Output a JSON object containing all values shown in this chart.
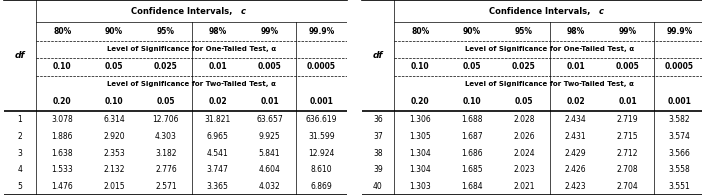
{
  "title": "Confidence Intervals, c",
  "ci_headers": [
    "80%",
    "90%",
    "95%",
    "98%",
    "99%",
    "99.9%"
  ],
  "one_tail_label": "Level of Significance for One-Tailed Test, α",
  "one_tail_vals": [
    "0.10",
    "0.05",
    "0.025",
    "0.01",
    "0.005",
    "0.0005"
  ],
  "two_tail_label": "Level of Significance for Two-Tailed Test, α",
  "two_tail_vals": [
    "0.20",
    "0.10",
    "0.05",
    "0.02",
    "0.01",
    "0.001"
  ],
  "df_label": "df",
  "left_table": {
    "df": [
      1,
      2,
      3,
      4,
      5
    ],
    "data": [
      [
        "3.078",
        "6.314",
        "12.706",
        "31.821",
        "63.657",
        "636.619"
      ],
      [
        "1.886",
        "2.920",
        "4.303",
        "6.965",
        "9.925",
        "31.599"
      ],
      [
        "1.638",
        "2.353",
        "3.182",
        "4.541",
        "5.841",
        "12.924"
      ],
      [
        "1.533",
        "2.132",
        "2.776",
        "3.747",
        "4.604",
        "8.610"
      ],
      [
        "1.476",
        "2.015",
        "2.571",
        "3.365",
        "4.032",
        "6.869"
      ]
    ]
  },
  "right_table": {
    "df": [
      36,
      37,
      38,
      39,
      40
    ],
    "data": [
      [
        "1.306",
        "1.688",
        "2.028",
        "2.434",
        "2.719",
        "3.582"
      ],
      [
        "1.305",
        "1.687",
        "2.026",
        "2.431",
        "2.715",
        "3.574"
      ],
      [
        "1.304",
        "1.686",
        "2.024",
        "2.429",
        "2.712",
        "3.566"
      ],
      [
        "1.304",
        "1.685",
        "2.023",
        "2.426",
        "2.708",
        "3.558"
      ],
      [
        "1.303",
        "1.684",
        "2.021",
        "2.423",
        "2.704",
        "3.551"
      ]
    ]
  },
  "bg_color": "#ffffff",
  "line_color": "#000000",
  "hfs": 5.5,
  "dfs": 5.5
}
